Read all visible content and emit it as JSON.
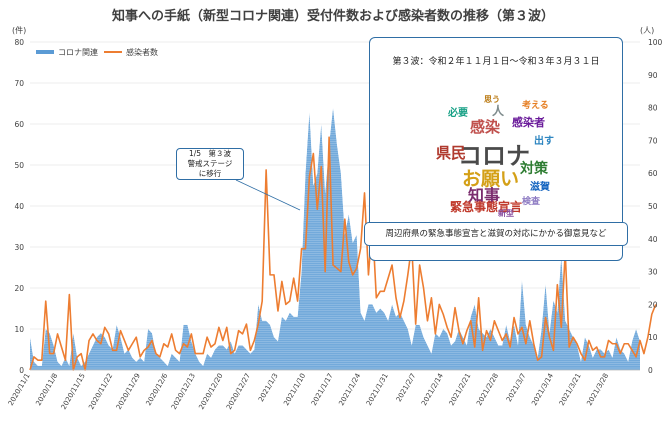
{
  "chart_data": {
    "type": "bar",
    "title": "知事への手紙（新型コロナ関連）受付件数および感染者数の推移（第３波）",
    "y_left_unit": "(件)",
    "y_right_unit": "(人)",
    "ylim_left": [
      0,
      80
    ],
    "ylim_right": [
      0,
      100
    ],
    "yticks_left": [
      "0",
      "10",
      "20",
      "30",
      "40",
      "50",
      "60",
      "70",
      "80"
    ],
    "yticks_right": [
      "0",
      "10",
      "20",
      "30",
      "40",
      "50",
      "60",
      "70",
      "80",
      "90",
      "100"
    ],
    "grid": "horizontal",
    "legend_position": "top-left",
    "x_tick_labels": [
      "2020/11/1",
      "2020/11/8",
      "2020/11/15",
      "2020/11/22",
      "2020/11/29",
      "2020/12/6",
      "2020/12/13",
      "2020/12/20",
      "2020/12/27",
      "2021/1/3",
      "2021/1/10",
      "2021/1/17",
      "2021/1/24",
      "2021/1/31",
      "2021/2/7",
      "2021/2/14",
      "2021/2/21",
      "2021/2/28",
      "2021/3/7",
      "2021/3/14",
      "2021/3/21",
      "2021/3/28"
    ],
    "series": [
      {
        "name": "コロナ関連",
        "kind": "area",
        "axis": "left",
        "color": "#5b9bd5",
        "values": [
          8,
          2,
          1,
          1,
          10,
          9,
          6,
          2,
          1,
          3,
          1,
          9,
          3,
          1,
          2,
          4,
          6,
          8,
          9,
          8,
          6,
          5,
          11,
          8,
          4,
          5,
          3,
          2,
          3,
          2,
          10,
          9,
          4,
          3,
          2,
          1,
          4,
          3,
          2,
          11,
          11,
          7,
          4,
          2,
          1,
          4,
          3,
          5,
          6,
          6,
          5,
          7,
          4,
          6,
          6,
          5,
          4,
          5,
          16,
          12,
          12,
          11,
          8,
          7,
          13,
          12,
          14,
          13,
          13,
          24,
          48,
          63,
          45,
          48,
          60,
          43,
          55,
          64,
          55,
          48,
          33,
          38,
          31,
          33,
          14,
          12,
          16,
          16,
          14,
          15,
          14,
          12,
          16,
          13,
          14,
          12,
          10,
          6,
          11,
          11,
          8,
          6,
          4,
          9,
          8,
          10,
          9,
          6,
          7,
          10,
          8,
          6,
          13,
          16,
          10,
          9,
          8,
          10,
          8,
          6,
          6,
          11,
          7,
          11,
          6,
          22,
          11,
          8,
          6,
          3,
          10,
          21,
          9,
          17,
          14,
          28,
          12,
          10,
          8,
          6,
          2,
          8,
          6,
          3,
          5,
          5,
          4,
          5,
          3,
          8,
          5,
          4,
          2,
          7,
          10,
          7
        ]
      },
      {
        "name": "感染者数",
        "kind": "line",
        "axis": "right",
        "color": "#ed7d31",
        "values": [
          0,
          4,
          3,
          3,
          21,
          5,
          5,
          11,
          7,
          3,
          23,
          0,
          4,
          5,
          0,
          9,
          11,
          9,
          8,
          13,
          11,
          6,
          6,
          12,
          9,
          6,
          8,
          10,
          4,
          6,
          7,
          9,
          5,
          4,
          8,
          7,
          11,
          6,
          5,
          8,
          7,
          11,
          5,
          5,
          5,
          10,
          7,
          8,
          13,
          9,
          13,
          5,
          6,
          12,
          11,
          14,
          6,
          9,
          14,
          21,
          61,
          29,
          29,
          18,
          27,
          20,
          21,
          28,
          21,
          37,
          37,
          59,
          66,
          49,
          62,
          30,
          71,
          32,
          31,
          30,
          46,
          33,
          29,
          31,
          37,
          54,
          29,
          45,
          22,
          24,
          24,
          28,
          32,
          22,
          16,
          21,
          29,
          38,
          14,
          32,
          25,
          15,
          22,
          11,
          20,
          17,
          13,
          10,
          19,
          12,
          8,
          12,
          15,
          7,
          22,
          6,
          12,
          9,
          15,
          12,
          9,
          11,
          7,
          16,
          11,
          13,
          8,
          15,
          8,
          3,
          4,
          16,
          10,
          6,
          26,
          13,
          36,
          7,
          10,
          8,
          5,
          3,
          9,
          6,
          7,
          4,
          4,
          9,
          8,
          8,
          5,
          8,
          8,
          6,
          4,
          9,
          5,
          10,
          17,
          20
        ]
      }
    ]
  },
  "callout_stage": {
    "line1": "1/5　第３波",
    "line2": "警戒ステージ",
    "line3": "に移行"
  },
  "wave_box": {
    "title": "第３波：令和２年１１月１日～令和３年３月３１日"
  },
  "word_cloud": {
    "words": [
      {
        "text": "コロナ",
        "color": "#4a4a4a"
      },
      {
        "text": "お願い",
        "color": "#d4a017"
      },
      {
        "text": "知事",
        "color": "#7b2d6e"
      },
      {
        "text": "感染",
        "color": "#c0504d"
      },
      {
        "text": "県民",
        "color": "#b03a2e"
      },
      {
        "text": "緊急事態宣言",
        "color": "#c0392b"
      },
      {
        "text": "対策",
        "color": "#2e7d32"
      },
      {
        "text": "感染者",
        "color": "#6a1b9a"
      },
      {
        "text": "滋賀",
        "color": "#1565c0"
      },
      {
        "text": "検査",
        "color": "#8e7cc3"
      },
      {
        "text": "考える",
        "color": "#e67e22"
      },
      {
        "text": "出す",
        "color": "#2e86c1"
      },
      {
        "text": "人",
        "color": "#7f8c8d"
      },
      {
        "text": "必要",
        "color": "#16a085"
      },
      {
        "text": "思う",
        "color": "#b9770e"
      },
      {
        "text": "新型",
        "color": "#884ea0"
      }
    ]
  },
  "opinion_box": {
    "text": "周辺府県の緊急事態宣言と滋賀の対応にかかる御意見など"
  }
}
